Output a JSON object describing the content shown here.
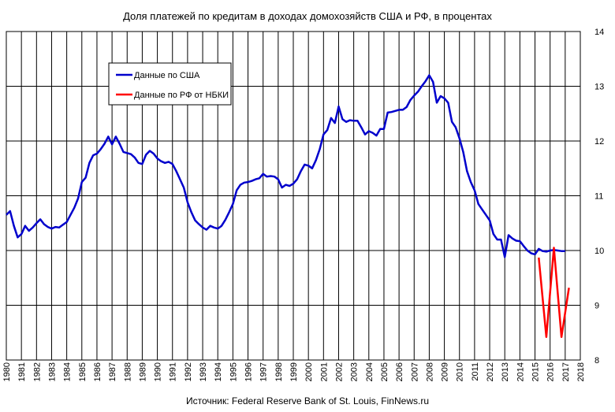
{
  "chart_data": {
    "type": "line",
    "title": "Доля платежей по кредитам  в доходах  домохозяйств  США и РФ, в процентах",
    "source": "Источник: Federal Reserve Bank of St. Louis, FinNews.ru",
    "xlabel": "",
    "ylabel": "",
    "xlim": [
      1980,
      2018
    ],
    "ylim": [
      8,
      14
    ],
    "yticks": [
      "8",
      "9",
      "10",
      "11",
      "12",
      "13",
      "14"
    ],
    "xticks": [
      "1980",
      "1981",
      "1982",
      "1983",
      "1984",
      "1985",
      "1986",
      "1987",
      "1988",
      "1989",
      "1990",
      "1991",
      "1992",
      "1993",
      "1994",
      "1995",
      "1996",
      "1997",
      "1998",
      "1999",
      "2000",
      "2001",
      "2002",
      "2003",
      "2004",
      "2005",
      "2006",
      "2007",
      "2008",
      "2009",
      "2010",
      "2011",
      "2012",
      "2013",
      "2014",
      "2015",
      "2016",
      "2017",
      "2018"
    ],
    "grid": true,
    "legend_position": "top-left",
    "series": [
      {
        "name": "Данные по США",
        "color": "#0000cc",
        "x": [
          1980.0,
          1980.25,
          1980.5,
          1980.75,
          1981.0,
          1981.25,
          1981.5,
          1981.75,
          1982.0,
          1982.25,
          1982.5,
          1982.75,
          1983.0,
          1983.25,
          1983.5,
          1983.75,
          1984.0,
          1984.25,
          1984.5,
          1984.75,
          1985.0,
          1985.25,
          1985.5,
          1985.75,
          1986.0,
          1986.25,
          1986.5,
          1986.75,
          1987.0,
          1987.25,
          1987.5,
          1987.75,
          1988.0,
          1988.25,
          1988.5,
          1988.75,
          1989.0,
          1989.25,
          1989.5,
          1989.75,
          1990.0,
          1990.25,
          1990.5,
          1990.75,
          1991.0,
          1991.25,
          1991.5,
          1991.75,
          1992.0,
          1992.25,
          1992.5,
          1992.75,
          1993.0,
          1993.25,
          1993.5,
          1993.75,
          1994.0,
          1994.25,
          1994.5,
          1994.75,
          1995.0,
          1995.25,
          1995.5,
          1995.75,
          1996.0,
          1996.25,
          1996.5,
          1996.75,
          1997.0,
          1997.25,
          1997.5,
          1997.75,
          1998.0,
          1998.25,
          1998.5,
          1998.75,
          1999.0,
          1999.25,
          1999.5,
          1999.75,
          2000.0,
          2000.25,
          2000.5,
          2000.75,
          2001.0,
          2001.25,
          2001.5,
          2001.75,
          2002.0,
          2002.25,
          2002.5,
          2002.75,
          2003.0,
          2003.25,
          2003.5,
          2003.75,
          2004.0,
          2004.25,
          2004.5,
          2004.75,
          2005.0,
          2005.25,
          2005.5,
          2005.75,
          2006.0,
          2006.25,
          2006.5,
          2006.75,
          2007.0,
          2007.25,
          2007.5,
          2007.75,
          2008.0,
          2008.25,
          2008.5,
          2008.75,
          2009.0,
          2009.25,
          2009.5,
          2009.75,
          2010.0,
          2010.25,
          2010.5,
          2010.75,
          2011.0,
          2011.25,
          2011.5,
          2011.75,
          2012.0,
          2012.25,
          2012.5,
          2012.75,
          2013.0,
          2013.25,
          2013.5,
          2013.75,
          2014.0,
          2014.25,
          2014.5,
          2014.75,
          2015.0,
          2015.25,
          2015.5,
          2015.75,
          2016.0,
          2016.25,
          2016.5,
          2016.75,
          2017.0
        ],
        "values": [
          10.65,
          10.72,
          10.45,
          10.24,
          10.3,
          10.45,
          10.36,
          10.42,
          10.5,
          10.57,
          10.48,
          10.43,
          10.4,
          10.43,
          10.42,
          10.47,
          10.52,
          10.65,
          10.78,
          10.95,
          11.25,
          11.33,
          11.6,
          11.74,
          11.77,
          11.85,
          11.95,
          12.08,
          11.94,
          12.08,
          11.95,
          11.8,
          11.78,
          11.76,
          11.7,
          11.6,
          11.58,
          11.75,
          11.82,
          11.77,
          11.68,
          11.63,
          11.6,
          11.62,
          11.58,
          11.45,
          11.3,
          11.15,
          10.88,
          10.7,
          10.55,
          10.48,
          10.42,
          10.38,
          10.45,
          10.42,
          10.4,
          10.45,
          10.56,
          10.7,
          10.85,
          11.1,
          11.2,
          11.24,
          11.25,
          11.27,
          11.3,
          11.32,
          11.4,
          11.35,
          11.36,
          11.35,
          11.3,
          11.15,
          11.2,
          11.18,
          11.22,
          11.3,
          11.45,
          11.57,
          11.55,
          11.5,
          11.65,
          11.85,
          12.12,
          12.2,
          12.42,
          12.33,
          12.63,
          12.4,
          12.35,
          12.38,
          12.37,
          12.37,
          12.25,
          12.12,
          12.18,
          12.15,
          12.1,
          12.22,
          12.22,
          12.52,
          12.53,
          12.55,
          12.57,
          12.57,
          12.62,
          12.75,
          12.83,
          12.9,
          13.0,
          13.09,
          13.2,
          13.08,
          12.7,
          12.82,
          12.78,
          12.7,
          12.35,
          12.25,
          12.05,
          11.8,
          11.45,
          11.25,
          11.1,
          10.85,
          10.75,
          10.65,
          10.55,
          10.3,
          10.2,
          10.2,
          9.88,
          10.28,
          10.22,
          10.18,
          10.17,
          10.08,
          10.0,
          9.95,
          9.93,
          10.03,
          9.99,
          9.98,
          10.0,
          10.01,
          10.0,
          9.99,
          9.99
        ]
      },
      {
        "name": "Данные по РФ от НБКИ",
        "color": "#ff0000",
        "x": [
          2015.25,
          2015.75,
          2016.25,
          2016.75,
          2017.25
        ],
        "values": [
          9.87,
          8.42,
          10.05,
          8.42,
          9.32
        ]
      }
    ]
  }
}
